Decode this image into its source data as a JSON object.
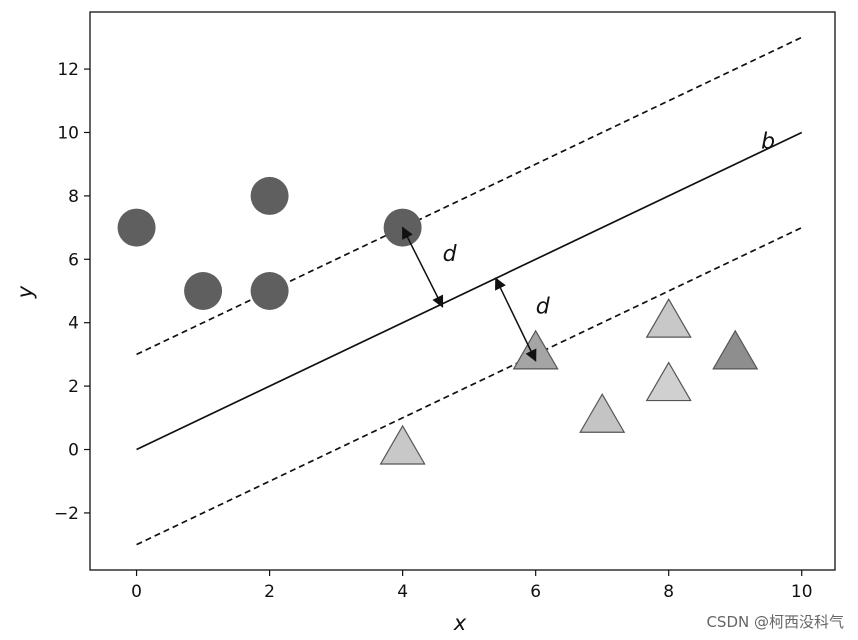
{
  "chart_data": {
    "type": "scatter",
    "title": "",
    "xlabel": "x",
    "ylabel": "y",
    "xlim": [
      -0.7,
      10.5
    ],
    "ylim": [
      -3.8,
      13.8
    ],
    "xticks": [
      0,
      2,
      4,
      6,
      8,
      10
    ],
    "yticks": [
      -2,
      0,
      2,
      4,
      6,
      8,
      10,
      12
    ],
    "ytick_labels": [
      "−2",
      "0",
      "2",
      "4",
      "6",
      "8",
      "10",
      "12"
    ],
    "grid": false,
    "series": [
      {
        "marker": "circle",
        "color": "#5f5f5f",
        "points": [
          [
            0,
            7
          ],
          [
            1,
            5
          ],
          [
            2,
            8
          ],
          [
            2,
            5
          ],
          [
            4,
            7
          ]
        ]
      },
      {
        "marker": "triangle",
        "color": "#c4c4c4",
        "points": [
          [
            4,
            0
          ],
          [
            6,
            3
          ],
          [
            7,
            1
          ],
          [
            8,
            4
          ],
          [
            8,
            2
          ],
          [
            9,
            3
          ]
        ],
        "colors": [
          "#c8c8c8",
          "#a5a5a5",
          "#c4c4c4",
          "#c8c8c8",
          "#d0d0d0",
          "#8e8e8e"
        ]
      }
    ],
    "lines": [
      {
        "label": "b",
        "style": "solid",
        "x": [
          0,
          10
        ],
        "y": [
          0,
          10
        ]
      },
      {
        "style": "dashed",
        "x": [
          0,
          10
        ],
        "y": [
          3,
          13
        ]
      },
      {
        "style": "dashed",
        "x": [
          0,
          10
        ],
        "y": [
          -3,
          7
        ]
      }
    ],
    "annotations": [
      {
        "text": "d",
        "from": [
          4,
          7
        ],
        "to": [
          4.6,
          4.5
        ]
      },
      {
        "text": "d",
        "from": [
          5.4,
          5.4
        ],
        "to": [
          6,
          2.8
        ]
      }
    ]
  },
  "watermark": "CSDN @柯西没科气"
}
